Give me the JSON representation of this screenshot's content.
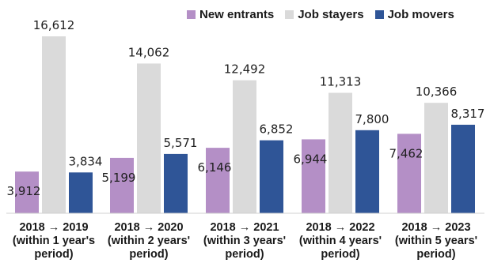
{
  "legend": [
    {
      "name": "New entrants",
      "color": "#b48fc6"
    },
    {
      "name": "Job stayers",
      "color": "#dadada"
    },
    {
      "name": "Job movers",
      "color": "#2f5597"
    }
  ],
  "categories": [
    {
      "line1": "2018 → 2019",
      "line2": "(within 1 year's",
      "line3": "period)"
    },
    {
      "line1": "2018 → 2020",
      "line2": "(within 2 years'",
      "line3": "period)"
    },
    {
      "line1": "2018 → 2021",
      "line2": "(within 3 years'",
      "line3": "period)"
    },
    {
      "line1": "2018 → 2022",
      "line2": "(within 4 years'",
      "line3": "period)"
    },
    {
      "line1": "2018 → 2023",
      "line2": "(within 5 years'",
      "line3": "period)"
    }
  ],
  "chart_data": {
    "type": "bar",
    "categories": [
      "2018 → 2019 (within 1 year's period)",
      "2018 → 2020 (within 2 years' period)",
      "2018 → 2021 (within 3 years' period)",
      "2018 → 2022 (within 4 years' period)",
      "2018 → 2023 (within 5 years' period)"
    ],
    "series": [
      {
        "name": "New entrants",
        "color": "#b48fc6",
        "values": [
          3912,
          5199,
          6146,
          6944,
          7462
        ],
        "labels": [
          "3,912",
          "5,199",
          "6,146",
          "6,944",
          "7,462"
        ]
      },
      {
        "name": "Job stayers",
        "color": "#dadada",
        "values": [
          16612,
          14062,
          12492,
          11313,
          10366
        ],
        "labels": [
          "16,612",
          "14,062",
          "12,492",
          "11,313",
          "10,366"
        ]
      },
      {
        "name": "Job movers",
        "color": "#2f5597",
        "values": [
          3834,
          5571,
          6852,
          7800,
          8317
        ],
        "labels": [
          "3,834",
          "5,571",
          "6,852",
          "7,800",
          "8,317"
        ]
      }
    ],
    "ylim": [
      0,
      16612
    ],
    "grid": false,
    "legend_position": "top-right",
    "title": "",
    "xlabel": "",
    "ylabel": ""
  }
}
